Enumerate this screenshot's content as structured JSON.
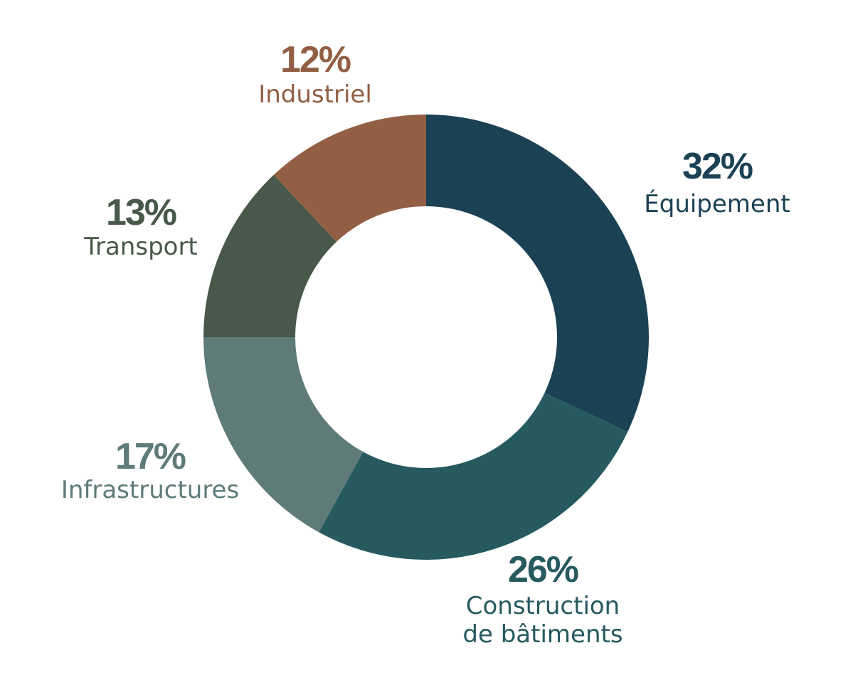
{
  "chart_data": {
    "type": "pie",
    "variant": "donut",
    "slices": [
      {
        "label_lines": [
          "Équipement"
        ],
        "value": 32,
        "value_label": "32%",
        "color": "#1b4254"
      },
      {
        "label_lines": [
          "Construction",
          "de bâtiments"
        ],
        "value": 26,
        "value_label": "26%",
        "color": "#265a5f"
      },
      {
        "label_lines": [
          "Infrastructures"
        ],
        "value": 17,
        "value_label": "17%",
        "color": "#5e7b79"
      },
      {
        "label_lines": [
          "Transport"
        ],
        "value": 13,
        "value_label": "13%",
        "color": "#485849"
      },
      {
        "label_lines": [
          "Industriel"
        ],
        "value": 12,
        "value_label": "12%",
        "color": "#925f44"
      }
    ]
  }
}
